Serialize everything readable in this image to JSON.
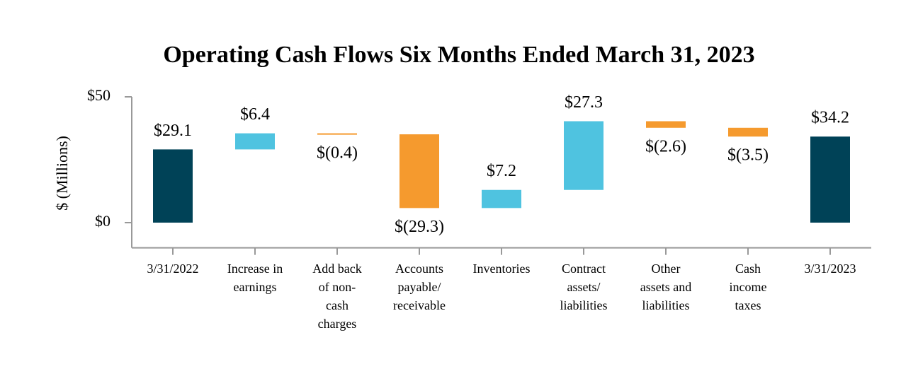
{
  "chart_data": {
    "type": "waterfall",
    "title": "Operating Cash Flows Six Months Ended March 31, 2023",
    "ylabel": "$ (Millions)",
    "categories": [
      "3/31/2022",
      "Increase in\nearnings",
      "Add back\nof non-\ncash\ncharges",
      "Accounts\npayable/\nreceivable",
      "Inventories",
      "Contract\nassets/\nliabilities",
      "Other\nassets and\nliabilities",
      "Cash\nincome\ntaxes",
      "3/31/2023"
    ],
    "values": [
      29.1,
      6.4,
      -0.4,
      -29.3,
      7.2,
      27.3,
      -2.6,
      -3.5,
      34.2
    ],
    "value_labels": [
      "$29.1",
      "$6.4",
      "$(0.4)",
      "$(29.3)",
      "$7.2",
      "$27.3",
      "$(2.6)",
      "$(3.5)",
      "$34.2"
    ],
    "colors": [
      "#004257",
      "#4fc3e0",
      "#f59a2e",
      "#f59a2e",
      "#4fc3e0",
      "#4fc3e0",
      "#f59a2e",
      "#f59a2e",
      "#004257"
    ],
    "ylim": [
      -10,
      50
    ],
    "yticks": [
      {
        "value": 0,
        "label": "$0"
      },
      {
        "value": 50,
        "label": "$50"
      }
    ]
  }
}
